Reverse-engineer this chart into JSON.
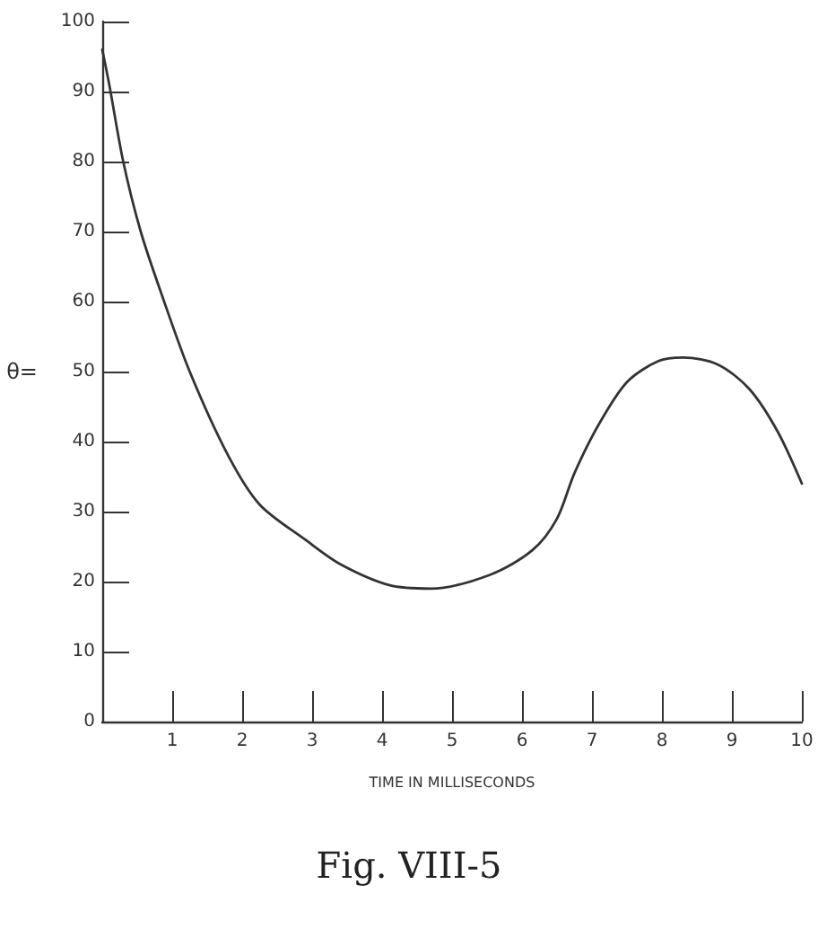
{
  "chart_data": {
    "type": "line",
    "xlabel": "TIME IN MILLISECONDS",
    "ylabel": "θ=",
    "annotations": [
      "Fig. VIII-5"
    ],
    "x": [
      0,
      0.1,
      0.3,
      0.55,
      0.85,
      1.25,
      1.8,
      2.25,
      2.9,
      3.4,
      4.1,
      4.7,
      5.55,
      6.15,
      6.5,
      6.75,
      7.1,
      7.5,
      7.95,
      8.3,
      8.8,
      9.25,
      9.65,
      10
    ],
    "values": [
      96,
      91,
      80,
      70,
      61,
      50,
      38,
      31,
      26,
      22.5,
      19.5,
      19,
      21,
      24.5,
      29,
      35.5,
      42.5,
      48.5,
      51.5,
      52,
      51,
      47.5,
      41.5,
      34
    ],
    "color": "#333333",
    "xlim": [
      0,
      10
    ],
    "xticks": [
      1,
      2,
      3,
      4,
      5,
      6,
      7,
      8,
      9,
      10
    ],
    "ylim": [
      0,
      100
    ],
    "yticks": [
      0,
      10,
      20,
      30,
      40,
      50,
      60,
      70,
      80,
      90,
      100
    ]
  }
}
